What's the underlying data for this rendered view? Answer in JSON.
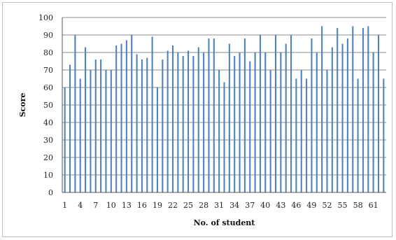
{
  "chart_data": {
    "type": "bar",
    "title": "",
    "xlabel": "No. of student",
    "ylabel": "Score",
    "ylim": [
      0,
      100
    ],
    "yticks": [
      0,
      10,
      20,
      30,
      40,
      50,
      60,
      70,
      80,
      90,
      100
    ],
    "xtick_labels": [
      "1",
      "4",
      "7",
      "10",
      "13",
      "16",
      "19",
      "22",
      "25",
      "28",
      "31",
      "34",
      "37",
      "40",
      "43",
      "46",
      "49",
      "52",
      "55",
      "58",
      "61"
    ],
    "xtick_every": 3,
    "grid": true,
    "legend": "none",
    "bar_color": "#4f81bd",
    "categories": [
      1,
      2,
      3,
      4,
      5,
      6,
      7,
      8,
      9,
      10,
      11,
      12,
      13,
      14,
      15,
      16,
      17,
      18,
      19,
      20,
      21,
      22,
      23,
      24,
      25,
      26,
      27,
      28,
      29,
      30,
      31,
      32,
      33,
      34,
      35,
      36,
      37,
      38,
      39,
      40,
      41,
      42,
      43,
      44,
      45,
      46,
      47,
      48,
      49,
      50,
      51,
      52,
      53,
      54,
      55,
      56,
      57,
      58,
      59,
      60,
      61,
      62,
      63
    ],
    "values": [
      60,
      73,
      90,
      65,
      83,
      70,
      76,
      76,
      70,
      70,
      84,
      85,
      87,
      90,
      79,
      76,
      77,
      89,
      60,
      76,
      81,
      84,
      80,
      78,
      81,
      78,
      83,
      80,
      88,
      88,
      70,
      63,
      85,
      78,
      80,
      88,
      75,
      80,
      90,
      80,
      70,
      90,
      80,
      85,
      90,
      65,
      70,
      65,
      88,
      80,
      95,
      70,
      83,
      94,
      85,
      88,
      95,
      65,
      94,
      95,
      80,
      90,
      65
    ]
  }
}
